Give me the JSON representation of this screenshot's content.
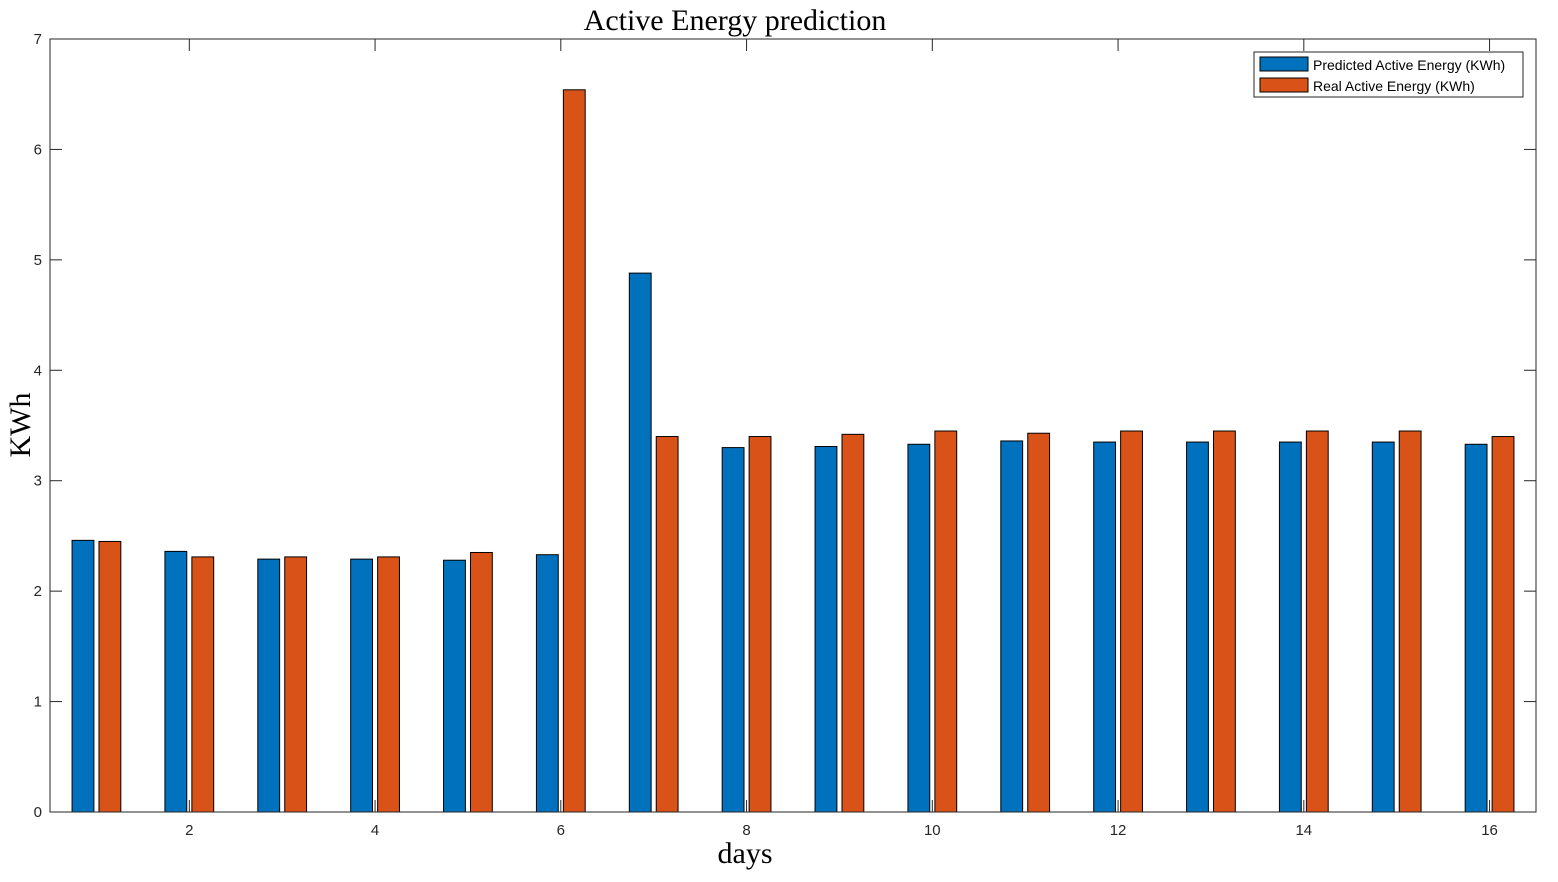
{
  "chart_data": {
    "type": "bar",
    "title": "Active Energy prediction",
    "xlabel": "days",
    "ylabel": "KWh",
    "xlim": [
      0.5,
      16.5
    ],
    "ylim": [
      0,
      7
    ],
    "categories": [
      1,
      2,
      3,
      4,
      5,
      6,
      7,
      8,
      9,
      10,
      11,
      12,
      13,
      14,
      15,
      16
    ],
    "xticks": [
      "2",
      "4",
      "6",
      "8",
      "10",
      "12",
      "14",
      "16"
    ],
    "xtick_values": [
      2,
      4,
      6,
      8,
      10,
      12,
      14,
      16
    ],
    "yticks": [
      "0",
      "1",
      "2",
      "3",
      "4",
      "5",
      "6",
      "7"
    ],
    "ytick_values": [
      0,
      1,
      2,
      3,
      4,
      5,
      6,
      7
    ],
    "grid": false,
    "legend_position": "top-right",
    "series": [
      {
        "name": "Predicted Active Energy (KWh)",
        "color": "#0072BD",
        "values": [
          2.46,
          2.36,
          2.29,
          2.29,
          2.28,
          2.33,
          4.88,
          3.3,
          3.31,
          3.33,
          3.36,
          3.35,
          3.35,
          3.35,
          3.35,
          3.33
        ]
      },
      {
        "name": "Real Active Energy (KWh)",
        "color": "#D95319",
        "values": [
          2.45,
          2.31,
          2.31,
          2.31,
          2.35,
          6.54,
          3.4,
          3.4,
          3.42,
          3.45,
          3.43,
          3.45,
          3.45,
          3.45,
          3.45,
          3.4
        ]
      }
    ]
  }
}
